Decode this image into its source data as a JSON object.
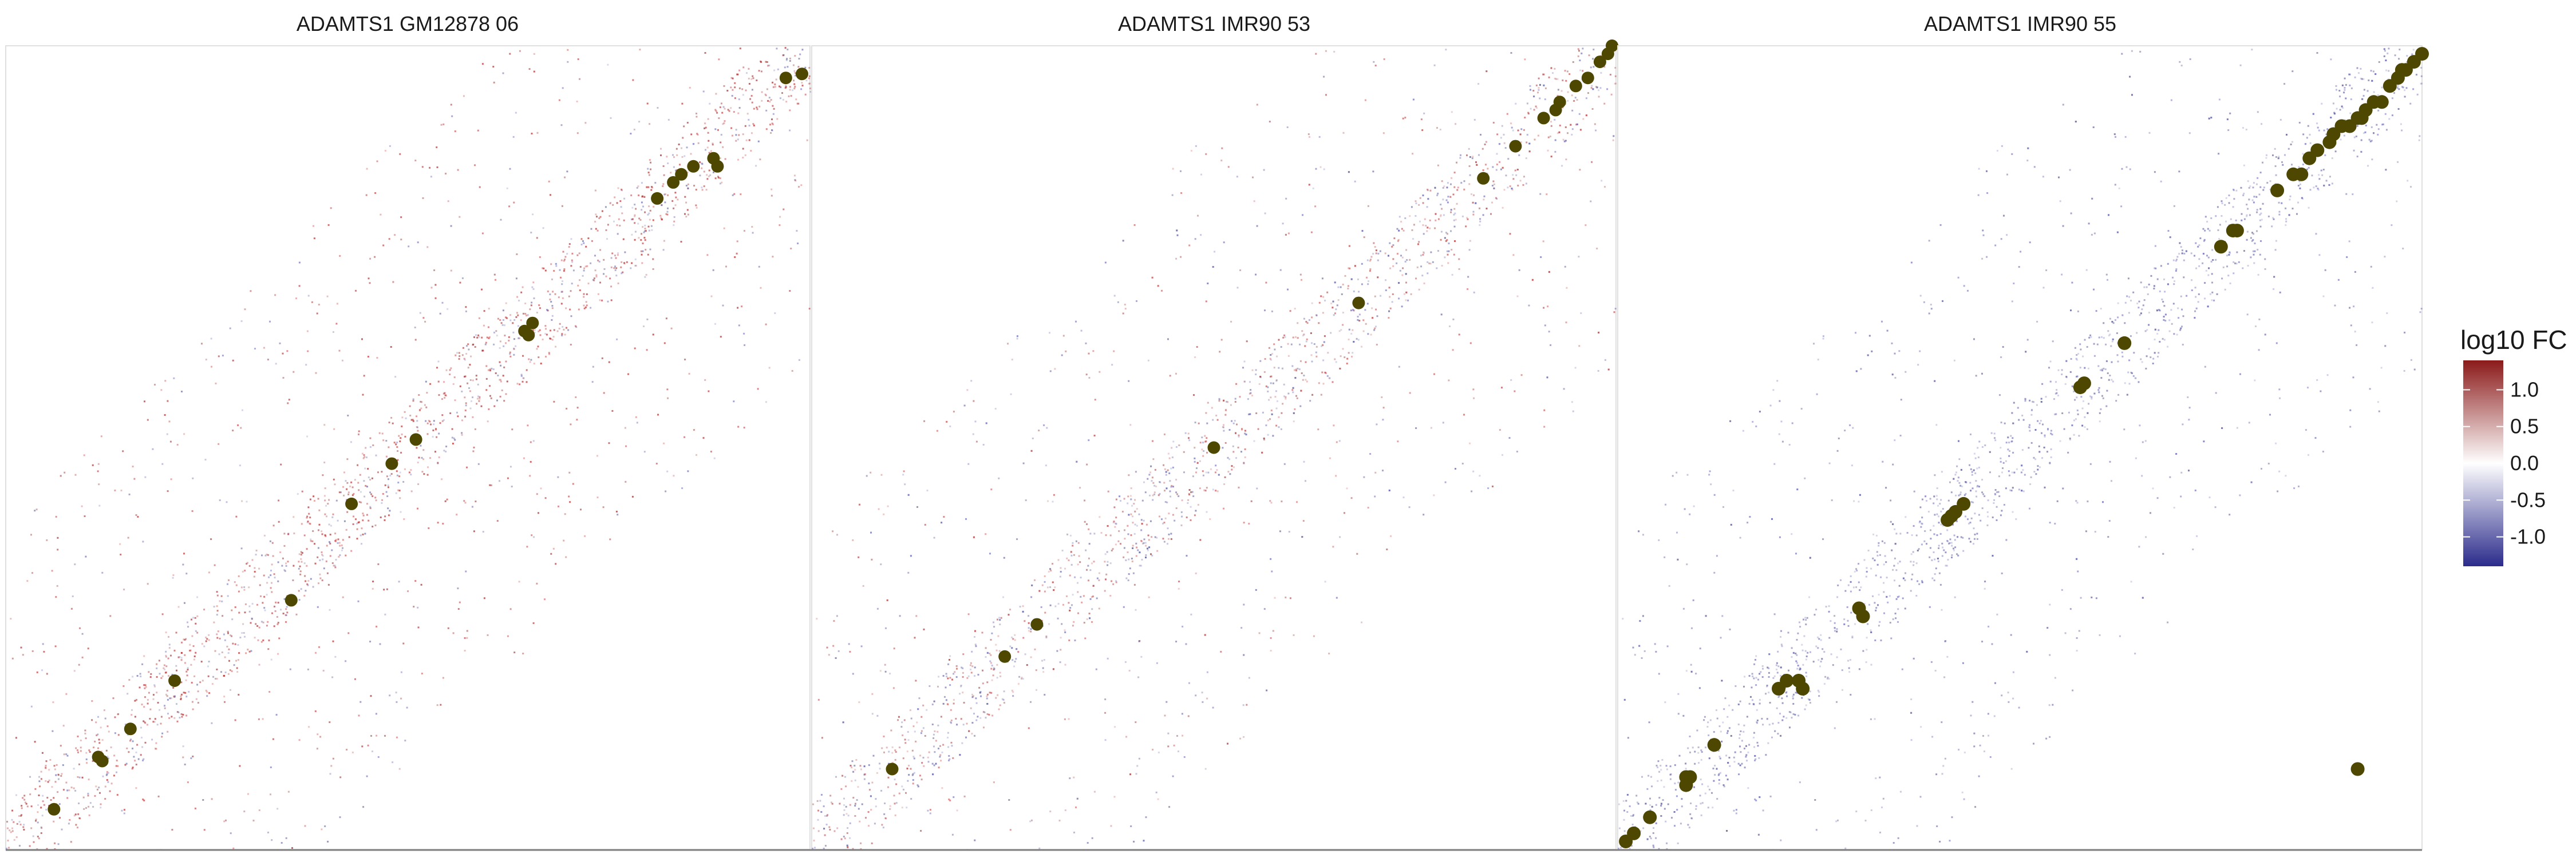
{
  "chart_data": {
    "type": "heatmap",
    "legend": {
      "title": "log10 FC",
      "placement": "right",
      "range": [
        -1.4,
        1.4
      ],
      "ticks": [
        1.0,
        0.5,
        0.0,
        -0.5,
        -1.0
      ],
      "tick_labels": [
        "1.0",
        "0.5",
        "0.0",
        "-0.5",
        "-1.0"
      ],
      "colors": {
        "high": "#8b1a1a",
        "mid": "#ffffff",
        "low": "#2b2b8c"
      }
    },
    "point_color": "#4d4700",
    "panels": [
      {
        "title": "ADAMTS1 GM12878 06",
        "tint": "#b22222",
        "blue_share": 0.25,
        "points": [
          [
            0.06,
            0.05
          ],
          [
            0.12,
            0.11
          ],
          [
            0.115,
            0.115
          ],
          [
            0.155,
            0.15
          ],
          [
            0.21,
            0.21
          ],
          [
            0.355,
            0.31
          ],
          [
            0.43,
            0.43
          ],
          [
            0.48,
            0.48
          ],
          [
            0.51,
            0.51
          ],
          [
            0.645,
            0.645
          ],
          [
            0.655,
            0.655
          ],
          [
            0.65,
            0.64
          ],
          [
            0.81,
            0.81
          ],
          [
            0.83,
            0.83
          ],
          [
            0.84,
            0.84
          ],
          [
            0.855,
            0.85
          ],
          [
            0.88,
            0.86
          ],
          [
            0.885,
            0.85
          ],
          [
            0.97,
            0.96
          ],
          [
            0.99,
            0.965
          ]
        ]
      },
      {
        "title": "ADAMTS1 IMR90 53",
        "tint": "#c05050",
        "blue_share": 0.45,
        "points": [
          [
            0.1,
            0.1
          ],
          [
            0.24,
            0.24
          ],
          [
            0.28,
            0.28
          ],
          [
            0.5,
            0.5
          ],
          [
            0.68,
            0.68
          ],
          [
            0.835,
            0.835
          ],
          [
            0.875,
            0.875
          ],
          [
            0.91,
            0.91
          ],
          [
            0.925,
            0.92
          ],
          [
            0.93,
            0.93
          ],
          [
            0.95,
            0.95
          ],
          [
            0.965,
            0.96
          ],
          [
            0.98,
            0.98
          ],
          [
            0.99,
            0.99
          ],
          [
            0.995,
            1.0
          ]
        ]
      },
      {
        "title": "ADAMTS1 IMR90 55",
        "tint": "#6a6ab0",
        "blue_share": 0.6,
        "points": [
          [
            0.01,
            0.01
          ],
          [
            0.02,
            0.02
          ],
          [
            0.04,
            0.04
          ],
          [
            0.085,
            0.08
          ],
          [
            0.085,
            0.09
          ],
          [
            0.09,
            0.09
          ],
          [
            0.12,
            0.13
          ],
          [
            0.2,
            0.2
          ],
          [
            0.21,
            0.21
          ],
          [
            0.23,
            0.2
          ],
          [
            0.225,
            0.21
          ],
          [
            0.305,
            0.29
          ],
          [
            0.3,
            0.3
          ],
          [
            0.41,
            0.41
          ],
          [
            0.415,
            0.415
          ],
          [
            0.42,
            0.42
          ],
          [
            0.43,
            0.43
          ],
          [
            0.575,
            0.575
          ],
          [
            0.58,
            0.58
          ],
          [
            0.63,
            0.63
          ],
          [
            0.75,
            0.75
          ],
          [
            0.765,
            0.77
          ],
          [
            0.77,
            0.77
          ],
          [
            0.82,
            0.82
          ],
          [
            0.84,
            0.84
          ],
          [
            0.85,
            0.84
          ],
          [
            0.86,
            0.86
          ],
          [
            0.87,
            0.87
          ],
          [
            0.885,
            0.88
          ],
          [
            0.89,
            0.89
          ],
          [
            0.9,
            0.9
          ],
          [
            0.91,
            0.9
          ],
          [
            0.92,
            0.91
          ],
          [
            0.925,
            0.91
          ],
          [
            0.93,
            0.92
          ],
          [
            0.94,
            0.93
          ],
          [
            0.95,
            0.93
          ],
          [
            0.96,
            0.95
          ],
          [
            0.97,
            0.96
          ],
          [
            0.975,
            0.97
          ],
          [
            0.98,
            0.97
          ],
          [
            0.99,
            0.98
          ],
          [
            1.0,
            0.99
          ],
          [
            0.92,
            0.1
          ]
        ]
      }
    ]
  }
}
